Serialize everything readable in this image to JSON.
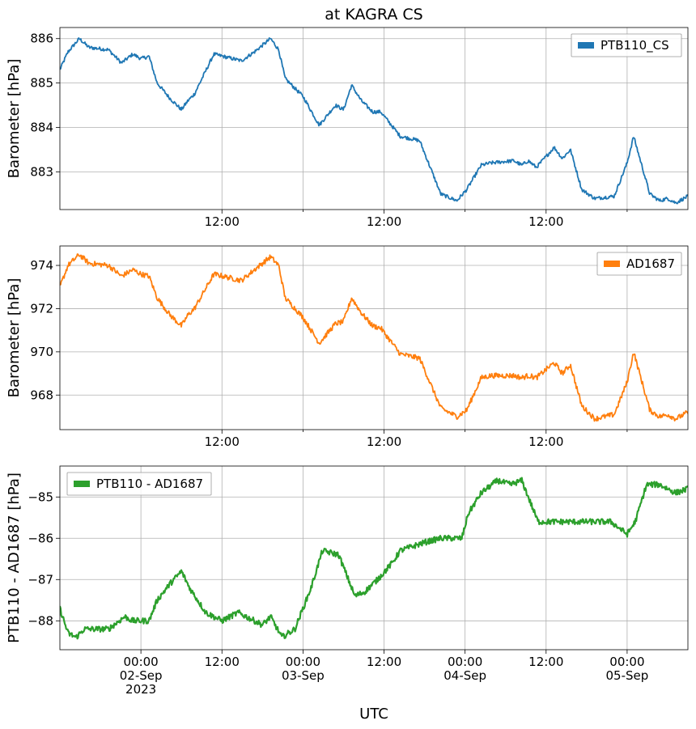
{
  "chart_data": [
    {
      "type": "line",
      "title": "at KAGRA CS",
      "ylabel": "Barometer [hPa]",
      "xlabel": "",
      "legend": {
        "label": "PTB110_CS",
        "placement": "top-right"
      },
      "color": "#1f77b4",
      "xlim": [
        -0.5,
        3.375
      ],
      "ylim": [
        882.15,
        886.25
      ],
      "yticks": [
        883,
        884,
        885,
        886
      ],
      "xticks": [
        0.5,
        1.5,
        2.5,
        3.5
      ],
      "xticklabels": [
        "12:00",
        "12:00",
        "12:00",
        "12:00"
      ],
      "minor_xticks": [
        1.0,
        2.0,
        3.0
      ],
      "grid": true,
      "noise": 0.04,
      "series": [
        {
          "x": [
            -0.5,
            -0.45,
            -0.38,
            -0.32,
            -0.2,
            -0.12,
            -0.05,
            0.0,
            0.05,
            0.1,
            0.18,
            0.25,
            0.29,
            0.33,
            0.45,
            0.62,
            0.7,
            0.8,
            0.85,
            0.89,
            1.0,
            1.1,
            1.2,
            1.25,
            1.3,
            1.36,
            1.43,
            1.48,
            1.6,
            1.72,
            1.85,
            1.95,
            2.01,
            2.1,
            2.16,
            2.3,
            2.35,
            2.39,
            2.44,
            2.55,
            2.6,
            2.65,
            2.72,
            2.8,
            2.92,
            3.0,
            3.04,
            3.14,
            3.2,
            3.25,
            3.3,
            3.375
          ],
          "y": [
            885.3,
            885.7,
            886.0,
            885.8,
            885.75,
            885.45,
            885.65,
            885.55,
            885.6,
            885.0,
            884.65,
            884.4,
            884.6,
            884.75,
            885.65,
            885.5,
            885.7,
            886.0,
            885.75,
            885.1,
            884.7,
            884.05,
            884.5,
            884.4,
            884.95,
            884.6,
            884.35,
            884.35,
            883.8,
            883.7,
            882.5,
            882.35,
            882.6,
            883.15,
            883.2,
            883.25,
            883.15,
            883.25,
            883.1,
            883.55,
            883.3,
            883.5,
            882.6,
            882.4,
            882.45,
            883.2,
            883.8,
            882.5,
            882.35,
            882.4,
            882.3,
            882.45
          ]
        }
      ]
    },
    {
      "type": "line",
      "title": "",
      "ylabel": "Barometer [hPa]",
      "xlabel": "",
      "legend": {
        "label": "AD1687",
        "placement": "top-right"
      },
      "color": "#ff7f0e",
      "xlim": [
        -0.5,
        3.375
      ],
      "ylim": [
        966.4,
        974.9
      ],
      "yticks": [
        968,
        970,
        972,
        974
      ],
      "xticks": [
        0.5,
        1.5,
        2.5,
        3.5
      ],
      "xticklabels": [
        "12:00",
        "12:00",
        "12:00",
        "12:00"
      ],
      "minor_xticks": [
        1.0,
        2.0,
        3.0
      ],
      "grid": true,
      "noise": 0.12,
      "series": [
        {
          "x": [
            -0.5,
            -0.45,
            -0.38,
            -0.32,
            -0.2,
            -0.12,
            -0.05,
            0.0,
            0.05,
            0.1,
            0.18,
            0.25,
            0.29,
            0.33,
            0.45,
            0.62,
            0.7,
            0.8,
            0.85,
            0.89,
            1.0,
            1.1,
            1.2,
            1.25,
            1.3,
            1.36,
            1.43,
            1.48,
            1.6,
            1.72,
            1.85,
            1.95,
            2.01,
            2.1,
            2.16,
            2.3,
            2.35,
            2.39,
            2.44,
            2.55,
            2.6,
            2.65,
            2.72,
            2.8,
            2.92,
            3.0,
            3.04,
            3.14,
            3.2,
            3.25,
            3.3,
            3.375
          ],
          "y": [
            973.0,
            974.0,
            974.5,
            974.1,
            974.0,
            973.5,
            973.8,
            973.6,
            973.5,
            972.5,
            971.7,
            971.2,
            971.7,
            972.0,
            973.6,
            973.3,
            973.8,
            974.4,
            974.0,
            972.5,
            971.6,
            970.4,
            971.3,
            971.4,
            972.5,
            971.8,
            971.2,
            971.1,
            969.9,
            969.7,
            967.4,
            967.0,
            967.3,
            968.8,
            968.9,
            968.9,
            968.8,
            968.9,
            968.8,
            969.5,
            969.0,
            969.4,
            967.5,
            966.9,
            967.1,
            968.6,
            970.0,
            967.3,
            967.0,
            967.1,
            966.9,
            967.2
          ]
        }
      ]
    },
    {
      "type": "line",
      "title": "",
      "ylabel": "PTB110 - AD1687 [hPa]",
      "xlabel": "UTC",
      "legend": {
        "label": "PTB110 - AD1687",
        "placement": "top-left"
      },
      "color": "#2ca02c",
      "xlim": [
        -0.5,
        3.375
      ],
      "ylim": [
        -88.7,
        -84.25
      ],
      "yticks": [
        -88,
        -87,
        -86,
        -85
      ],
      "ytick_prefix": "−",
      "xticks": [
        0.5,
        1.5,
        2.5,
        3.5
      ],
      "xticklabels": [
        "12:00",
        "12:00",
        "12:00",
        "12:00"
      ],
      "date_ticks": [
        {
          "x": 0.0,
          "lines": [
            "00:00",
            "02-Sep",
            "2023"
          ]
        },
        {
          "x": 1.0,
          "lines": [
            "00:00",
            "03-Sep"
          ]
        },
        {
          "x": 2.0,
          "lines": [
            "00:00",
            "04-Sep"
          ]
        },
        {
          "x": 3.0,
          "lines": [
            "00:00",
            "05-Sep"
          ]
        }
      ],
      "grid": true,
      "noise": 0.07,
      "series": [
        {
          "x": [
            -0.5,
            -0.45,
            -0.4,
            -0.35,
            -0.25,
            -0.2,
            -0.1,
            -0.05,
            0.05,
            0.1,
            0.18,
            0.25,
            0.3,
            0.4,
            0.5,
            0.6,
            0.75,
            0.8,
            0.87,
            0.95,
            1.05,
            1.12,
            1.22,
            1.32,
            1.38,
            1.46,
            1.55,
            1.6,
            1.75,
            1.85,
            1.98,
            2.02,
            2.1,
            2.2,
            2.28,
            2.35,
            2.45,
            2.55,
            2.72,
            2.82,
            2.9,
            3.0,
            3.05,
            3.12,
            3.2,
            3.3,
            3.375
          ],
          "y": [
            -87.7,
            -88.3,
            -88.4,
            -88.2,
            -88.2,
            -88.2,
            -87.9,
            -88.0,
            -88.0,
            -87.5,
            -87.1,
            -86.8,
            -87.2,
            -87.8,
            -88.0,
            -87.8,
            -88.1,
            -87.9,
            -88.4,
            -88.2,
            -87.2,
            -86.3,
            -86.4,
            -87.4,
            -87.3,
            -87.0,
            -86.6,
            -86.3,
            -86.1,
            -86.0,
            -86.0,
            -85.4,
            -84.9,
            -84.6,
            -84.7,
            -84.6,
            -85.6,
            -85.6,
            -85.6,
            -85.6,
            -85.6,
            -85.9,
            -85.6,
            -84.7,
            -84.7,
            -84.9,
            -84.8
          ]
        }
      ]
    }
  ]
}
